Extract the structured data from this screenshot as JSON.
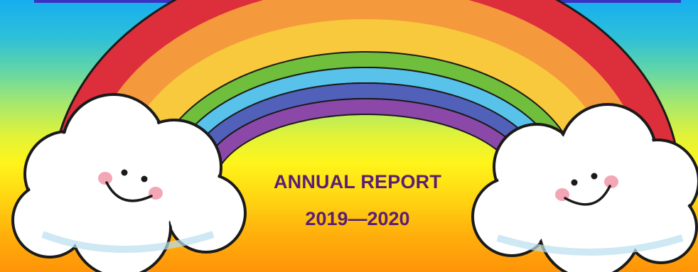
{
  "banner": {
    "title": "ANNUAL REPORT",
    "years": "2019—2020"
  },
  "artwork": {
    "rainbow_bands": [
      "red",
      "orange",
      "yellow",
      "green",
      "blue",
      "indigo",
      "violet"
    ],
    "clouds": [
      "left-cloud",
      "right-cloud"
    ]
  },
  "colors": {
    "text": "#5a1f73",
    "sky_top": "#16aef0",
    "sky_bottom": "#ff9408"
  }
}
